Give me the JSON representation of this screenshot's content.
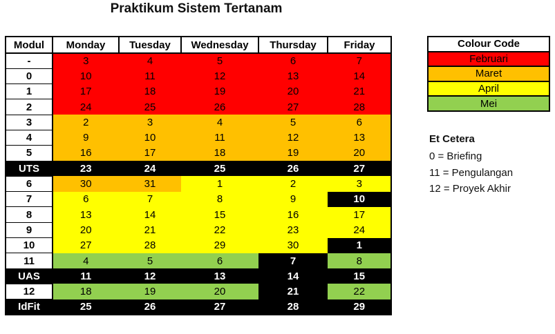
{
  "title": "Praktikum Sistem Tertanam",
  "headers": [
    "Modul",
    "Monday",
    "Tuesday",
    "Wednesday",
    "Thursday",
    "Friday"
  ],
  "colors": {
    "red": "#ff0000",
    "orange": "#ffc000",
    "yellow": "#ffff00",
    "green": "#92d050",
    "black": "#000000",
    "white": "#ffffff"
  },
  "rows": [
    {
      "modul": "-",
      "cells": [
        [
          "3",
          "red"
        ],
        [
          "4",
          "red"
        ],
        [
          "5",
          "red"
        ],
        [
          "6",
          "red"
        ],
        [
          "7",
          "red"
        ]
      ]
    },
    {
      "modul": "0",
      "cells": [
        [
          "10",
          "red"
        ],
        [
          "11",
          "red"
        ],
        [
          "12",
          "red"
        ],
        [
          "13",
          "red"
        ],
        [
          "14",
          "red"
        ]
      ]
    },
    {
      "modul": "1",
      "cells": [
        [
          "17",
          "red"
        ],
        [
          "18",
          "red"
        ],
        [
          "19",
          "red"
        ],
        [
          "20",
          "red"
        ],
        [
          "21",
          "red"
        ]
      ]
    },
    {
      "modul": "2",
      "cells": [
        [
          "24",
          "red"
        ],
        [
          "25",
          "red"
        ],
        [
          "26",
          "red"
        ],
        [
          "27",
          "red"
        ],
        [
          "28",
          "red"
        ]
      ]
    },
    {
      "modul": "3",
      "cells": [
        [
          "2",
          "orange"
        ],
        [
          "3",
          "orange"
        ],
        [
          "4",
          "orange"
        ],
        [
          "5",
          "orange"
        ],
        [
          "6",
          "orange"
        ]
      ]
    },
    {
      "modul": "4",
      "cells": [
        [
          "9",
          "orange"
        ],
        [
          "10",
          "orange"
        ],
        [
          "11",
          "orange"
        ],
        [
          "12",
          "orange"
        ],
        [
          "13",
          "orange"
        ]
      ]
    },
    {
      "modul": "5",
      "cells": [
        [
          "16",
          "orange"
        ],
        [
          "17",
          "orange"
        ],
        [
          "18",
          "orange"
        ],
        [
          "19",
          "orange"
        ],
        [
          "20",
          "orange"
        ]
      ]
    },
    {
      "modul": "UTS",
      "modul_dark": true,
      "cells": [
        [
          "23",
          "black"
        ],
        [
          "24",
          "black"
        ],
        [
          "25",
          "black"
        ],
        [
          "26",
          "black"
        ],
        [
          "27",
          "black"
        ]
      ]
    },
    {
      "modul": "6",
      "cells": [
        [
          "30",
          "orange"
        ],
        [
          "31",
          "orange"
        ],
        [
          "1",
          "yellow"
        ],
        [
          "2",
          "yellow"
        ],
        [
          "3",
          "yellow"
        ]
      ]
    },
    {
      "modul": "7",
      "cells": [
        [
          "6",
          "yellow"
        ],
        [
          "7",
          "yellow"
        ],
        [
          "8",
          "yellow"
        ],
        [
          "9",
          "yellow"
        ],
        [
          "10",
          "black"
        ]
      ]
    },
    {
      "modul": "8",
      "cells": [
        [
          "13",
          "yellow"
        ],
        [
          "14",
          "yellow"
        ],
        [
          "15",
          "yellow"
        ],
        [
          "16",
          "yellow"
        ],
        [
          "17",
          "yellow"
        ]
      ]
    },
    {
      "modul": "9",
      "cells": [
        [
          "20",
          "yellow"
        ],
        [
          "21",
          "yellow"
        ],
        [
          "22",
          "yellow"
        ],
        [
          "23",
          "yellow"
        ],
        [
          "24",
          "yellow"
        ]
      ]
    },
    {
      "modul": "10",
      "cells": [
        [
          "27",
          "yellow"
        ],
        [
          "28",
          "yellow"
        ],
        [
          "29",
          "yellow"
        ],
        [
          "30",
          "yellow"
        ],
        [
          "1",
          "black"
        ]
      ]
    },
    {
      "modul": "11",
      "cells": [
        [
          "4",
          "green"
        ],
        [
          "5",
          "green"
        ],
        [
          "6",
          "green"
        ],
        [
          "7",
          "black"
        ],
        [
          "8",
          "green"
        ]
      ]
    },
    {
      "modul": "UAS",
      "modul_dark": true,
      "cells": [
        [
          "11",
          "black"
        ],
        [
          "12",
          "black"
        ],
        [
          "13",
          "black"
        ],
        [
          "14",
          "black"
        ],
        [
          "15",
          "black"
        ]
      ]
    },
    {
      "modul": "12",
      "cells": [
        [
          "18",
          "green"
        ],
        [
          "19",
          "green"
        ],
        [
          "20",
          "green"
        ],
        [
          "21",
          "black"
        ],
        [
          "22",
          "green"
        ]
      ]
    },
    {
      "modul": "IdFit",
      "modul_dark": true,
      "cells": [
        [
          "25",
          "black"
        ],
        [
          "26",
          "black"
        ],
        [
          "27",
          "black"
        ],
        [
          "28",
          "black"
        ],
        [
          "29",
          "black"
        ]
      ]
    }
  ],
  "legend": {
    "header": "Colour Code",
    "items": [
      {
        "label": "Februari",
        "color": "red"
      },
      {
        "label": "Maret",
        "color": "orange"
      },
      {
        "label": "April",
        "color": "yellow"
      },
      {
        "label": "Mei",
        "color": "green"
      }
    ]
  },
  "etc": {
    "heading": "Et Cetera",
    "items": [
      "0 = Briefing",
      "11 = Pengulangan",
      "12 = Proyek Akhir"
    ]
  }
}
